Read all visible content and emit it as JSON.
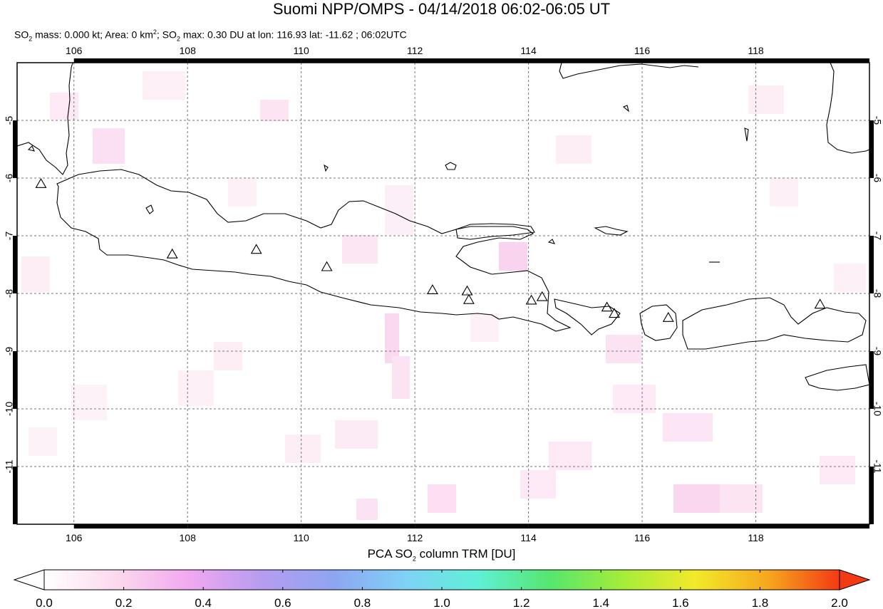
{
  "title": "Suomi NPP/OMPS - 04/14/2018 06:02-06:05 UT",
  "subtitle": {
    "so2_mass_prefix": "SO",
    "so2_mass_sub": "2",
    "so2_mass_text": " mass: 0.000 kt; Area: 0 km",
    "area_sup": "2",
    "so2_max_prefix": "; SO",
    "so2_max_sub": "2",
    "so2_max_text": " max: 0.30 DU at lon: 116.93 lat: -11.62 ; 06:02UTC"
  },
  "map": {
    "lon_range": [
      105,
      120
    ],
    "lat_range": [
      -12,
      -4
    ],
    "lon_ticks": [
      "106",
      "108",
      "110",
      "112",
      "114",
      "116",
      "118"
    ],
    "lat_ticks": [
      "-5",
      "-6",
      "-7",
      "-8",
      "-9",
      "-10",
      "-11"
    ],
    "grid": "dashed",
    "coastline_color": "#000000",
    "volcano_marker": "triangle-icon",
    "volcanoes": [
      {
        "lon": 105.42,
        "lat": -6.1
      },
      {
        "lon": 107.73,
        "lat": -7.32
      },
      {
        "lon": 109.21,
        "lat": -7.24
      },
      {
        "lon": 110.45,
        "lat": -7.54
      },
      {
        "lon": 112.31,
        "lat": -7.94
      },
      {
        "lon": 112.92,
        "lat": -7.96
      },
      {
        "lon": 112.95,
        "lat": -8.11
      },
      {
        "lon": 114.05,
        "lat": -8.12
      },
      {
        "lon": 114.24,
        "lat": -8.06
      },
      {
        "lon": 115.38,
        "lat": -8.24
      },
      {
        "lon": 115.51,
        "lat": -8.35
      },
      {
        "lon": 116.46,
        "lat": -8.42
      },
      {
        "lon": 119.13,
        "lat": -8.19
      }
    ]
  },
  "colorbar": {
    "label_prefix": "PCA SO",
    "label_sub": "2",
    "label_suffix": " column TRM [DU]",
    "min": 0.0,
    "max": 2.0,
    "ticks": [
      "0.0",
      "0.2",
      "0.4",
      "0.6",
      "0.8",
      "1.0",
      "1.2",
      "1.4",
      "1.6",
      "1.8",
      "2.0"
    ],
    "colors": [
      "#ffffff",
      "#fbd9ee",
      "#f2a8f0",
      "#b79cf0",
      "#8ea5f2",
      "#7fd2f6",
      "#5ff0d7",
      "#56e66e",
      "#a5ec3a",
      "#f2ea2a",
      "#f6a81e",
      "#f43a14"
    ]
  }
}
